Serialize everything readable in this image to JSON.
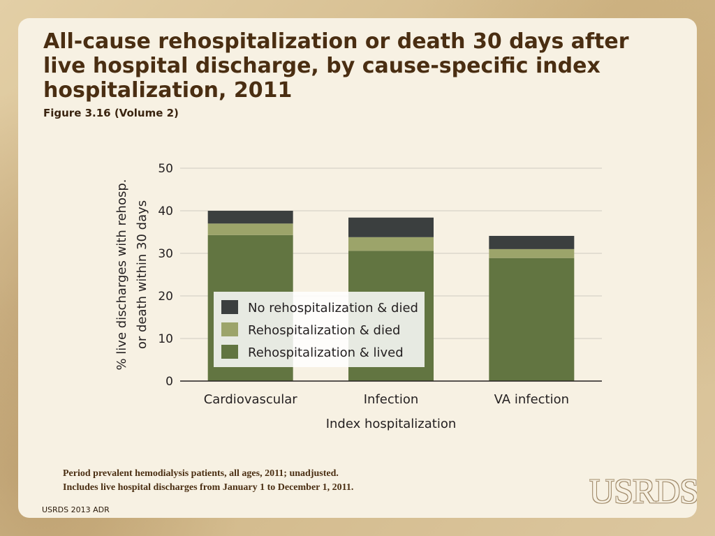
{
  "slide": {
    "title": "All-cause rehospitalization or death 30 days after live hospital discharge, by cause-specific index hospitalization, 2011",
    "subtitle": "Figure 3.16 (Volume 2)",
    "footnote_line1": "Period prevalent hemodialysis patients, all ages, 2011; unadjusted.",
    "footnote_line2": "Includes live hospital discharges from January 1 to December 1, 2011.",
    "footer": "USRDS 2013 ADR",
    "logo_text": "USRDS"
  },
  "chart_data": {
    "type": "bar",
    "stacked": true,
    "categories": [
      "Cardiovascular",
      "Infection",
      "VA infection"
    ],
    "series": [
      {
        "name": "Rehospitalization & lived",
        "color": "#627541",
        "values": [
          34.3,
          30.6,
          28.9
        ]
      },
      {
        "name": "Rehospitalization & died",
        "color": "#9ca46a",
        "values": [
          2.7,
          3.2,
          2.1
        ]
      },
      {
        "name": "No rehospitalization & died",
        "color": "#3b3f3f",
        "values": [
          3.0,
          4.6,
          3.1
        ]
      }
    ],
    "legend_order": [
      "No rehospitalization & died",
      "Rehospitalization & died",
      "Rehospitalization & lived"
    ],
    "xlabel": "Index hospitalization",
    "ylabel": [
      "% live discharges with rehosp.",
      "or death within 30 days"
    ],
    "ylim": [
      0,
      50
    ],
    "yticks": [
      0,
      10,
      20,
      30,
      40,
      50
    ],
    "grid": true,
    "legend_position": "lower-left inside plot"
  }
}
